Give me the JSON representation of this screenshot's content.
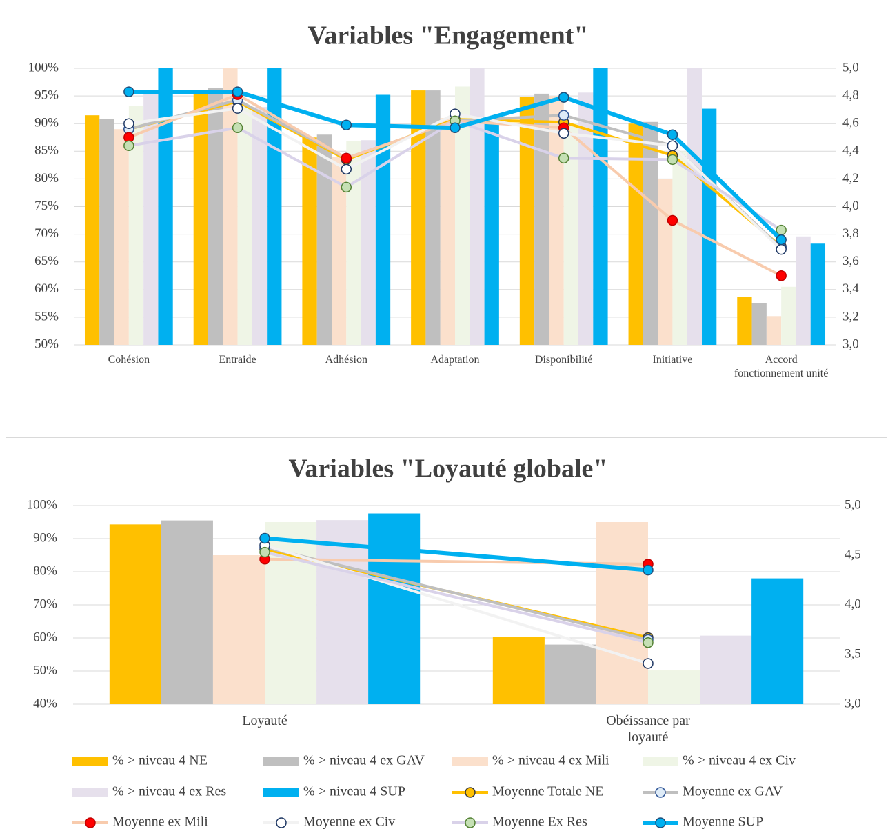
{
  "chart_data": [
    {
      "type": "combo",
      "title": "Variables \"Engagement\"",
      "categories": [
        "Cohésion",
        "Entraide",
        "Adhésion",
        "Adaptation",
        "Disponibilité",
        "Initiative",
        "Accord fonctionnement unité"
      ],
      "ylim": [
        50,
        100
      ],
      "yticks": [
        {
          "value": 50,
          "label": "50%"
        },
        {
          "value": 55,
          "label": "55%"
        },
        {
          "value": 60,
          "label": "60%"
        },
        {
          "value": 65,
          "label": "65%"
        },
        {
          "value": 70,
          "label": "70%"
        },
        {
          "value": 75,
          "label": "75%"
        },
        {
          "value": 80,
          "label": "80%"
        },
        {
          "value": 85,
          "label": "85%"
        },
        {
          "value": 90,
          "label": "90%"
        },
        {
          "value": 95,
          "label": "95%"
        },
        {
          "value": 100,
          "label": "100%"
        }
      ],
      "y2lim": [
        3,
        5
      ],
      "y2ticks": [
        {
          "value": 3,
          "label": "3,0"
        },
        {
          "value": 3.2,
          "label": "3,2"
        },
        {
          "value": 3.4,
          "label": "3,4"
        },
        {
          "value": 3.6,
          "label": "3,6"
        },
        {
          "value": 3.8,
          "label": "3,8"
        },
        {
          "value": 4,
          "label": "4,0"
        },
        {
          "value": 4.2,
          "label": "4,2"
        },
        {
          "value": 4.4,
          "label": "4,4"
        },
        {
          "value": 4.6,
          "label": "4,6"
        },
        {
          "value": 4.8,
          "label": "4,8"
        },
        {
          "value": 5,
          "label": "5,0"
        }
      ],
      "grid": true,
      "series": [
        {
          "type": "bar",
          "color": "#FFC000",
          "values": [
            91.5,
            96,
            87.5,
            96,
            94.8,
            90,
            58.7
          ]
        },
        {
          "type": "bar",
          "color": "#BFBFBF",
          "values": [
            90.8,
            96.5,
            88,
            96,
            95.4,
            90.3,
            57.5
          ]
        },
        {
          "type": "bar",
          "color": "#FBE0CC",
          "values": [
            89,
            100,
            84,
            91,
            95,
            80,
            55.2
          ]
        },
        {
          "type": "bar",
          "color": "#EFF5E6",
          "values": [
            93.2,
            93,
            86.8,
            96.7,
            90,
            85,
            60.5
          ]
        },
        {
          "type": "bar",
          "color": "#E6E0EC",
          "values": [
            96,
            93,
            87,
            100,
            95.6,
            100,
            69.6
          ]
        },
        {
          "type": "bar",
          "color": "#00B0F0",
          "values": [
            100,
            100,
            95.2,
            91,
            100,
            92.7,
            68.3
          ]
        },
        {
          "type": "line",
          "axis": "y2",
          "color": "#FFC000",
          "marker_fill": "#FFC000",
          "marker_stroke": "#3A3A3A",
          "values": [
            4.56,
            4.76,
            4.34,
            4.63,
            4.61,
            4.37,
            3.71
          ]
        },
        {
          "type": "line",
          "axis": "y2",
          "color": "#BFBFBF",
          "marker_fill": "#DEEBF7",
          "marker_stroke": "#2F5597",
          "values": [
            4.56,
            4.77,
            4.35,
            4.62,
            4.66,
            4.44,
            3.7
          ]
        },
        {
          "type": "line",
          "axis": "y2",
          "color": "#F8CBAD",
          "marker_fill": "#FF0000",
          "marker_stroke": "#C00000",
          "values": [
            4.5,
            4.81,
            4.35,
            4.62,
            4.57,
            3.9,
            3.5
          ]
        },
        {
          "type": "line",
          "axis": "y2",
          "color": "#F2F2F2",
          "marker_fill": "#FFFFFF",
          "marker_stroke": "#1F3864",
          "values": [
            4.6,
            4.71,
            4.27,
            4.67,
            4.53,
            4.44,
            3.69
          ]
        },
        {
          "type": "line",
          "axis": "y2",
          "color": "#D9D2E9",
          "marker_fill": "#C5E0B4",
          "marker_stroke": "#548235",
          "values": [
            4.44,
            4.57,
            4.14,
            4.62,
            4.35,
            4.34,
            3.83
          ]
        },
        {
          "type": "line",
          "axis": "y2",
          "color": "#00B0F0",
          "marker_fill": "#00B0F0",
          "marker_stroke": "#1F4E79",
          "values": [
            4.83,
            4.83,
            4.59,
            4.57,
            4.79,
            4.52,
            3.76
          ]
        }
      ]
    },
    {
      "type": "combo",
      "title": "Variables \"Loyauté globale\"",
      "categories": [
        "Loyauté",
        "Obéissance par loyauté"
      ],
      "ylim": [
        40,
        100
      ],
      "yticks": [
        {
          "value": 40,
          "label": "40%"
        },
        {
          "value": 50,
          "label": "50%"
        },
        {
          "value": 60,
          "label": "60%"
        },
        {
          "value": 70,
          "label": "70%"
        },
        {
          "value": 80,
          "label": "80%"
        },
        {
          "value": 90,
          "label": "90%"
        },
        {
          "value": 100,
          "label": "100%"
        }
      ],
      "y2lim": [
        3,
        5
      ],
      "y2ticks": [
        {
          "value": 3,
          "label": "3,0"
        },
        {
          "value": 3.5,
          "label": "3,5"
        },
        {
          "value": 4,
          "label": "4,0"
        },
        {
          "value": 4.5,
          "label": "4,5"
        },
        {
          "value": 5,
          "label": "5,0"
        }
      ],
      "grid": true,
      "legend": "bottom",
      "series": [
        {
          "type": "bar",
          "name": "% > niveau 4 NE",
          "color": "#FFC000",
          "values": [
            94.3,
            60.3
          ]
        },
        {
          "type": "bar",
          "name": "% > niveau 4 ex GAV",
          "color": "#BFBFBF",
          "values": [
            95.5,
            58
          ]
        },
        {
          "type": "bar",
          "name": "% > niveau 4 ex Mili",
          "color": "#FBE0CC",
          "values": [
            85,
            95
          ]
        },
        {
          "type": "bar",
          "name": "% > niveau 4 ex Civ",
          "color": "#EFF5E6",
          "values": [
            95,
            50.2
          ]
        },
        {
          "type": "bar",
          "name": "% > niveau 4 ex Res",
          "color": "#E6E0EC",
          "values": [
            95.6,
            60.7
          ]
        },
        {
          "type": "bar",
          "name": "% > niveau 4 SUP",
          "color": "#00B0F0",
          "values": [
            97.6,
            78
          ]
        },
        {
          "type": "line",
          "axis": "y2",
          "name": "Moyenne Totale NE",
          "color": "#FFC000",
          "marker_fill": "#FFC000",
          "marker_stroke": "#3A3A3A",
          "values": [
            4.56,
            3.67
          ]
        },
        {
          "type": "line",
          "axis": "y2",
          "name": "Moyenne ex GAV",
          "color": "#BFBFBF",
          "marker_fill": "#DEEBF7",
          "marker_stroke": "#2F5597",
          "values": [
            4.58,
            3.65
          ]
        },
        {
          "type": "line",
          "axis": "y2",
          "name": "Moyenne ex Mili",
          "color": "#F8CBAD",
          "marker_fill": "#FF0000",
          "marker_stroke": "#C00000",
          "values": [
            4.46,
            4.41
          ]
        },
        {
          "type": "line",
          "axis": "y2",
          "name": "Moyenne ex Civ",
          "color": "#F2F2F2",
          "marker_fill": "#FFFFFF",
          "marker_stroke": "#1F3864",
          "values": [
            4.6,
            3.41
          ]
        },
        {
          "type": "line",
          "axis": "y2",
          "name": "Moyenne Ex Res",
          "color": "#D9D2E9",
          "marker_fill": "#C5E0B4",
          "marker_stroke": "#548235",
          "values": [
            4.53,
            3.62
          ]
        },
        {
          "type": "line",
          "axis": "y2",
          "name": "Moyenne SUP",
          "color": "#00B0F0",
          "marker_fill": "#00B0F0",
          "marker_stroke": "#1F4E79",
          "values": [
            4.67,
            4.35
          ]
        }
      ]
    }
  ]
}
